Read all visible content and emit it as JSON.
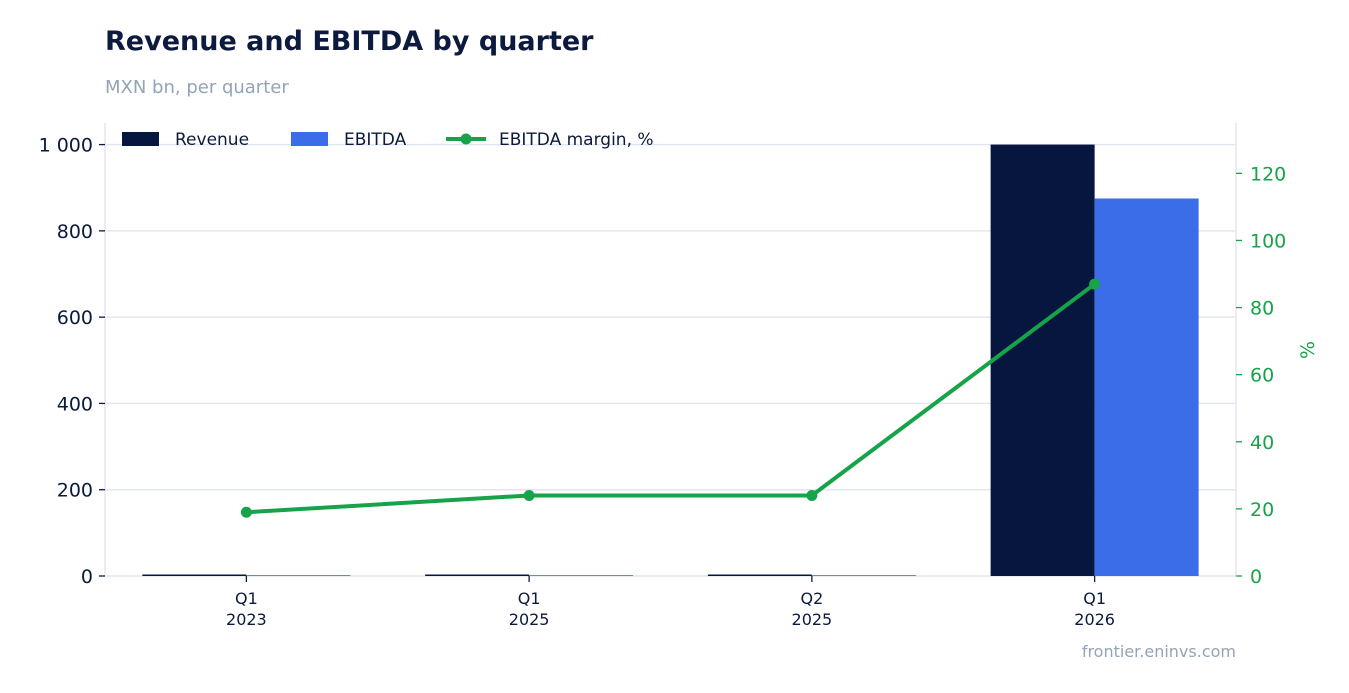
{
  "header": {
    "title": "Revenue and EBITDA by quarter",
    "subtitle": "MXN bn, per quarter"
  },
  "footer": {
    "source": "frontier.eninvs.com"
  },
  "colors": {
    "revenue": "#06163f",
    "ebitda": "#3b6de8",
    "margin": "#16a34a",
    "grid": "#e2e6ef"
  },
  "chart_data": {
    "type": "bar",
    "categories": [
      {
        "quarter": "Q1",
        "year": "2023"
      },
      {
        "quarter": "Q1",
        "year": "2025"
      },
      {
        "quarter": "Q2",
        "year": "2025"
      },
      {
        "quarter": "Q1",
        "year": "2026"
      }
    ],
    "series": [
      {
        "name": "Revenue",
        "kind": "bar",
        "axis": "left",
        "values": [
          3,
          3,
          3,
          1000
        ]
      },
      {
        "name": "EBITDA",
        "kind": "bar",
        "axis": "left",
        "values": [
          0.6,
          0.7,
          0.7,
          875
        ]
      },
      {
        "name": "EBITDA margin, %",
        "kind": "line",
        "axis": "right",
        "values": [
          19,
          24,
          24,
          87
        ]
      }
    ],
    "y_left": {
      "ylim": [
        0,
        1050
      ],
      "ticks": [
        0,
        200,
        400,
        600,
        800,
        1000
      ],
      "tick_labels": [
        "0",
        "200",
        "400",
        "600",
        "800",
        "1 000"
      ]
    },
    "y_right": {
      "label": "%",
      "ylim": [
        0,
        135
      ],
      "ticks": [
        0,
        20,
        40,
        60,
        80,
        100,
        120
      ],
      "tick_labels": [
        "0",
        "20",
        "40",
        "60",
        "80",
        "100",
        "120"
      ]
    },
    "grid": true,
    "legend": "top-left"
  }
}
